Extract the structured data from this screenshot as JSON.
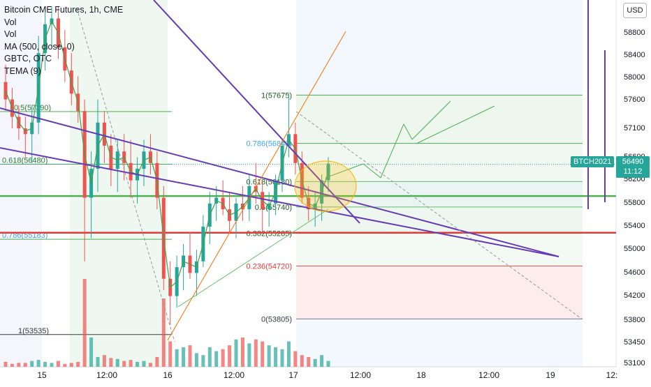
{
  "legend": {
    "title": "Bitcoin CME Futures, 1h, CME",
    "vol1": "Vol",
    "vol2": "Vol",
    "ma": "MA (500, close, 0)",
    "gbtc": "GBTC, OTC",
    "tema": "TEMA (9)"
  },
  "currency_button": "USD",
  "last_price": {
    "symbol": "BTCH2021",
    "value": "56490",
    "countdown": "11:12"
  },
  "colors": {
    "up": "#26a69a",
    "down": "#ef5350",
    "trendline": "#673ab7",
    "support": "#e53935",
    "level": "#4caf50",
    "projection": "#ff6d00"
  },
  "chart_data": {
    "type": "candlestick",
    "title": "Bitcoin CME Futures, 1h, CME",
    "x_tick_labels": [
      "15",
      "12:00",
      "16",
      "12:00",
      "17",
      "12:00",
      "18",
      "12:00",
      "19",
      "12:"
    ],
    "y_tick_labels": [
      "58800",
      "58400",
      "58000",
      "57600",
      "57100",
      "56600",
      "56200",
      "55800",
      "55400",
      "55000",
      "54600",
      "54200",
      "53800",
      "53450",
      "53100"
    ],
    "ylim": [
      53050,
      59150
    ],
    "grid": false,
    "fib_levels": [
      {
        "label": "1(57675)",
        "price": 57675
      },
      {
        "label": "0.786(56840)",
        "price": 56840
      },
      {
        "label": "0.618(56180)",
        "price": 56180
      },
      {
        "label": "0.5(55740)",
        "price": 55740
      },
      {
        "label": "0.382(55285)",
        "price": 55285
      },
      {
        "label": "0.236(54720)",
        "price": 54720
      },
      {
        "label": "0(53805)",
        "price": 53805
      }
    ],
    "left_fib_labels": [
      {
        "label": "0.5(57390)",
        "price": 57390
      },
      {
        "label": "0.618(56480)",
        "price": 56480
      },
      {
        "label": "0.786(55183)",
        "price": 55183
      },
      {
        "label": "1(53535)",
        "price": 53535
      }
    ],
    "horizontal_levels": [
      {
        "price": 55930,
        "role": "green support"
      },
      {
        "price": 55295,
        "role": "red support"
      }
    ],
    "candles": [
      [
        57900,
        58200,
        57400,
        57600
      ],
      [
        57600,
        57800,
        57100,
        57300
      ],
      [
        57300,
        57500,
        56900,
        57100
      ],
      [
        57100,
        57300,
        56600,
        57000
      ],
      [
        57000,
        57500,
        56500,
        57200
      ],
      [
        57200,
        58700,
        57000,
        58400
      ],
      [
        58400,
        59100,
        58100,
        58900
      ],
      [
        58900,
        59200,
        58500,
        59000
      ],
      [
        59000,
        59200,
        58300,
        58500
      ],
      [
        58500,
        58800,
        57900,
        58100
      ],
      [
        58100,
        58400,
        57500,
        57700
      ],
      [
        57700,
        58000,
        57200,
        57400
      ],
      [
        57400,
        57600,
        54800,
        55900
      ],
      [
        55900,
        56700,
        55200,
        56400
      ],
      [
        56400,
        57600,
        56000,
        57200
      ],
      [
        57200,
        57400,
        56500,
        56800
      ],
      [
        56800,
        57000,
        56100,
        56400
      ],
      [
        56400,
        56900,
        56000,
        56700
      ],
      [
        56700,
        57000,
        56200,
        56500
      ],
      [
        56500,
        56900,
        55900,
        56200
      ],
      [
        56200,
        56600,
        55800,
        56400
      ],
      [
        56400,
        56900,
        56100,
        56700
      ],
      [
        56700,
        57000,
        56300,
        56500
      ],
      [
        56500,
        56700,
        55700,
        55900
      ],
      [
        55900,
        56100,
        54300,
        54500
      ],
      [
        54500,
        54800,
        53700,
        54200
      ],
      [
        54200,
        54900,
        54000,
        54700
      ],
      [
        54700,
        55100,
        54300,
        54900
      ],
      [
        54900,
        55300,
        54500,
        54600
      ],
      [
        54600,
        55000,
        54200,
        54800
      ],
      [
        54800,
        55600,
        54700,
        55400
      ],
      [
        55400,
        56000,
        55100,
        55800
      ],
      [
        55800,
        56100,
        55500,
        55900
      ],
      [
        55900,
        56200,
        55600,
        55700
      ],
      [
        55700,
        56000,
        55300,
        55500
      ],
      [
        55500,
        55900,
        55200,
        55800
      ],
      [
        55800,
        56100,
        55500,
        55700
      ],
      [
        55700,
        56300,
        55500,
        56100
      ],
      [
        56100,
        56500,
        55800,
        56000
      ],
      [
        56000,
        56200,
        55300,
        55700
      ],
      [
        55700,
        56000,
        55400,
        55800
      ],
      [
        55800,
        56300,
        55600,
        56200
      ],
      [
        56200,
        56900,
        56000,
        56800
      ],
      [
        56800,
        57700,
        56600,
        57000
      ],
      [
        57000,
        57200,
        56300,
        56500
      ],
      [
        56500,
        56700,
        55800,
        55900
      ],
      [
        55900,
        56100,
        55500,
        55700
      ],
      [
        55700,
        56000,
        55400,
        55800
      ],
      [
        55800,
        56300,
        55500,
        56200
      ],
      [
        56200,
        56600,
        56000,
        56490
      ]
    ]
  }
}
